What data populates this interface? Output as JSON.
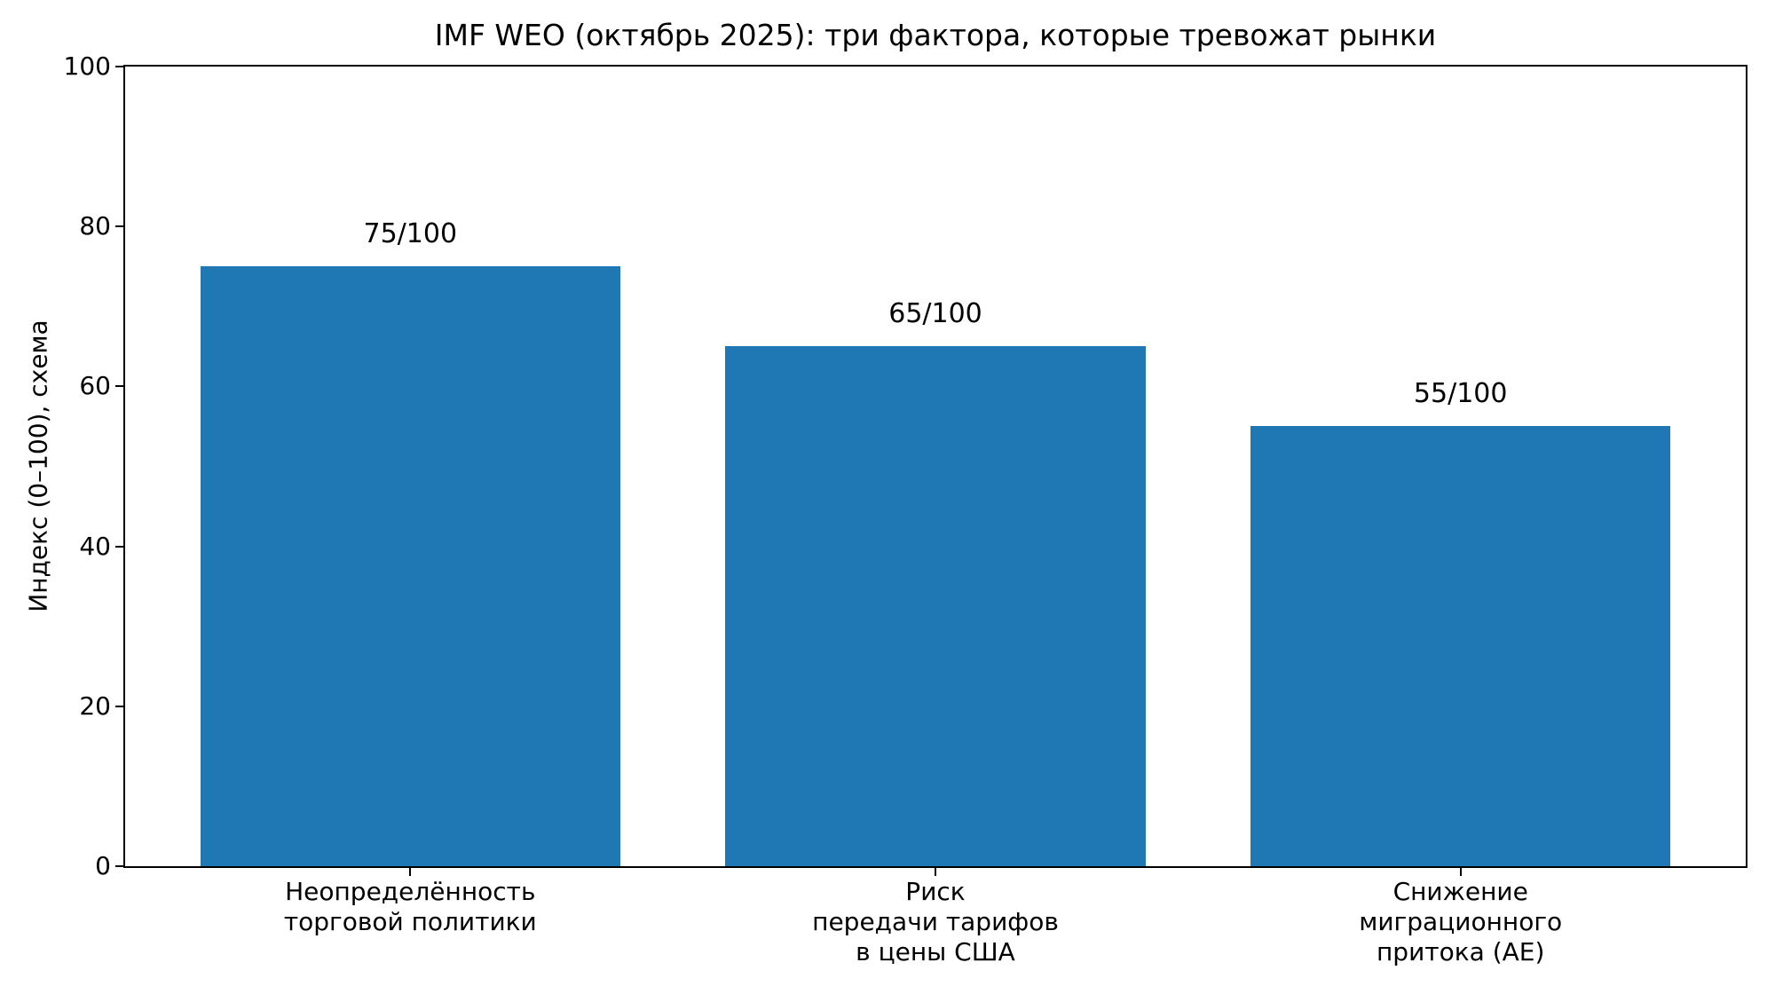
{
  "chart_data": {
    "type": "bar",
    "title": "IMF WEO (октябрь 2025): три фактора, которые тревожат рынки",
    "categories": [
      "Неопределённость\nторговой политики",
      "Риск\nпередачи тарифов\nв цены США",
      "Снижение\nмиграционного\nпритока (AE)"
    ],
    "values": [
      75,
      65,
      55
    ],
    "value_labels": [
      "75/100",
      "65/100",
      "55/100"
    ],
    "xlabel": "",
    "ylabel": "Индекс (0–100), схема",
    "ylim": [
      0,
      100
    ],
    "yticks": [
      0,
      20,
      40,
      60,
      80,
      100
    ],
    "bar_color": "#1f77b4",
    "grid": false,
    "legend": null,
    "frame": "full-box"
  }
}
